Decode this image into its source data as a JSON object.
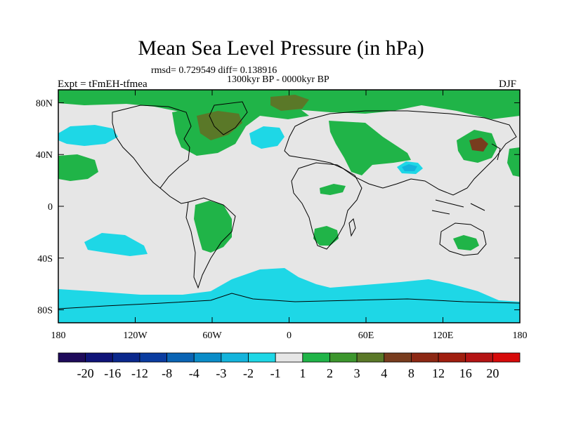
{
  "title": "Mean Sea Level Pressure (in hPa)",
  "stats": "rmsd= 0.729549 diff= 0.138916",
  "period": "1300kyr BP - 0000kyr BP",
  "experiment": "Expt = tFmEH-tfmea",
  "season": "DJF",
  "map": {
    "lon_ticks": [
      "180",
      "120W",
      "60W",
      "0",
      "60E",
      "120E",
      "180"
    ],
    "lat_ticks": [
      "80N",
      "40N",
      "0",
      "40S",
      "80S"
    ]
  },
  "colorbar": {
    "labels": [
      "-20",
      "-16",
      "-12",
      "-8",
      "-4",
      "-3",
      "-2",
      "-1",
      "1",
      "2",
      "3",
      "4",
      "8",
      "12",
      "16",
      "20"
    ],
    "colors": [
      "#1e0a5a",
      "#0f1478",
      "#0a288c",
      "#0a3ca0",
      "#0a64b4",
      "#0a8cc8",
      "#14b4dc",
      "#1ed7e6",
      "#e6e6e6",
      "#20b448",
      "#3c962d",
      "#5a7828",
      "#783c1e",
      "#8c2814",
      "#a01e0f",
      "#b41414",
      "#d70a0a"
    ]
  },
  "colors": {
    "ocean_neutral": "#e6e6e6",
    "positive_1_2": "#20b448",
    "positive_3_4": "#5a7828",
    "positive_4_8": "#783c1e",
    "negative_1_2": "#1ed7e6",
    "negative_2_3": "#14b4dc"
  }
}
